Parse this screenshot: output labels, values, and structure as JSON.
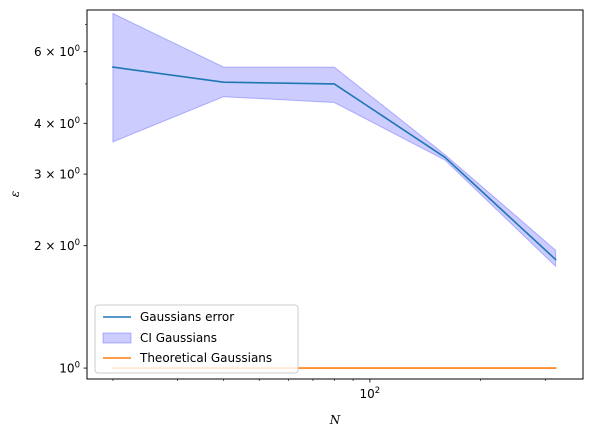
{
  "chart_data": {
    "type": "line",
    "xscale": "log",
    "yscale": "log",
    "xlabel": "N",
    "ylabel": "ε",
    "xlim": [
      17,
      380
    ],
    "ylim": [
      0.94,
      7.6
    ],
    "x_major_ticks": [
      {
        "value": 100,
        "base": "10",
        "exp": "2"
      }
    ],
    "y_major_ticks": [
      {
        "value": 1,
        "mant": "",
        "base": "10",
        "exp": "0"
      },
      {
        "value": 2,
        "mant": "2 × ",
        "base": "10",
        "exp": "0"
      },
      {
        "value": 3,
        "mant": "3 × ",
        "base": "10",
        "exp": "0"
      },
      {
        "value": 4,
        "mant": "4 × ",
        "base": "10",
        "exp": "0"
      },
      {
        "value": 6,
        "mant": "6 × ",
        "base": "10",
        "exp": "0"
      }
    ],
    "x_minor_ticks": [
      20,
      30,
      40,
      50,
      60,
      70,
      80,
      90,
      200,
      300
    ],
    "y_minor_ticks": [
      5,
      7
    ],
    "grid": false,
    "legend_position": "lower-left",
    "x": [
      20,
      40,
      80,
      160,
      320
    ],
    "series": [
      {
        "name": "Gaussians error",
        "kind": "line",
        "color": "#1f77b4",
        "values": [
          5.5,
          5.05,
          5.0,
          3.3,
          1.85
        ]
      },
      {
        "name": "CI Gaussians",
        "kind": "band",
        "color": "#0000ff",
        "lower": [
          3.6,
          4.65,
          4.5,
          3.25,
          1.78
        ],
        "upper": [
          7.45,
          5.5,
          5.5,
          3.35,
          1.95
        ]
      },
      {
        "name": "Theoretical Gaussians",
        "kind": "line",
        "color": "#ff7f0e",
        "values": [
          1.0,
          1.0,
          1.0,
          1.0,
          1.0
        ]
      }
    ]
  }
}
